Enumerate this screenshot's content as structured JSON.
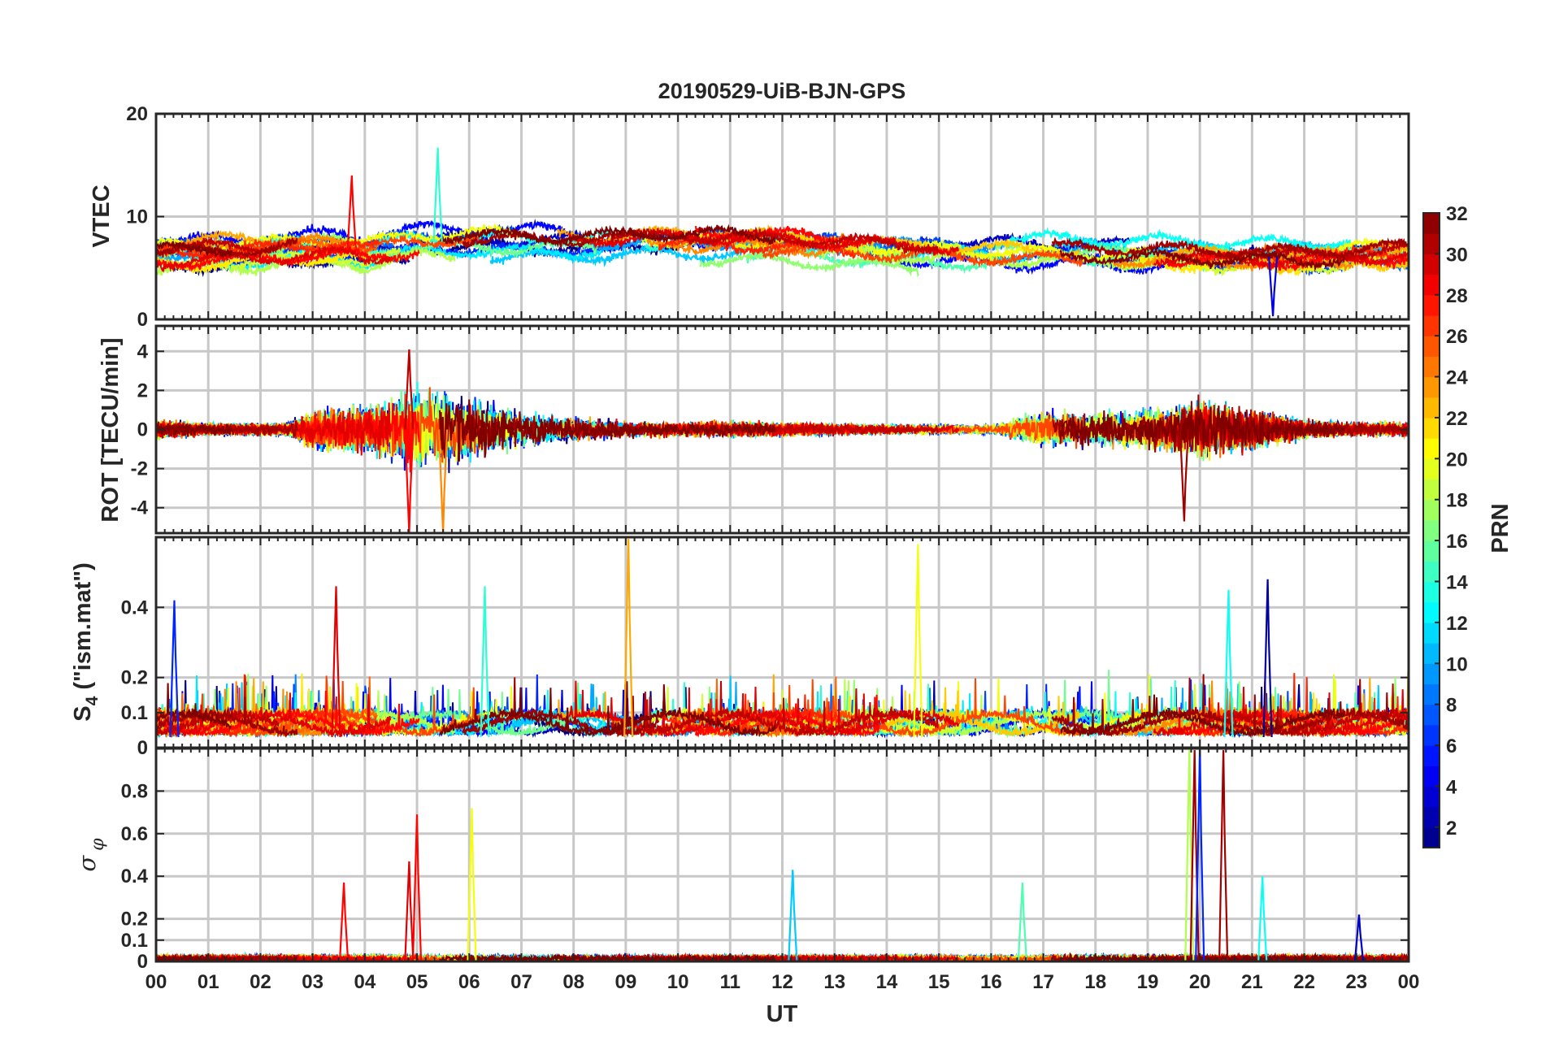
{
  "chart_data": {
    "type": "line",
    "title": "20190529-UiB-BJN-GPS",
    "xlabel": "UT",
    "x_tick_labels": [
      "00",
      "01",
      "02",
      "03",
      "04",
      "05",
      "06",
      "07",
      "08",
      "09",
      "10",
      "11",
      "12",
      "13",
      "14",
      "15",
      "16",
      "17",
      "18",
      "19",
      "20",
      "21",
      "22",
      "23",
      "00"
    ],
    "x_range_hours": [
      0,
      24
    ],
    "grid": true,
    "colorbar": {
      "label": "PRN",
      "range": [
        1,
        32
      ],
      "colormap": "jet",
      "tick_labels": [
        "2",
        "4",
        "6",
        "8",
        "10",
        "12",
        "14",
        "16",
        "18",
        "20",
        "22",
        "24",
        "26",
        "28",
        "30",
        "32"
      ]
    },
    "panels": [
      {
        "ylabel": "VTEC",
        "ylim": [
          0,
          20
        ],
        "y_tick_labels": [
          "0",
          "10",
          "20"
        ],
        "y_tick_values": [
          0,
          10,
          20
        ],
        "profile": {
          "hours": [
            0,
            2,
            3,
            3.7,
            4,
            5,
            6,
            7,
            9,
            10,
            12,
            14,
            16,
            18,
            19,
            20,
            21,
            22,
            23,
            24
          ],
          "base": [
            6.3,
            6.6,
            7.0,
            7.0,
            6.5,
            7.5,
            7.6,
            7.4,
            7.6,
            7.8,
            7.5,
            7.0,
            6.6,
            6.4,
            6.3,
            6.2,
            6.1,
            6.0,
            6.3,
            6.5
          ]
        },
        "peak_values": [
          {
            "hour": 3.75,
            "value": 14.0,
            "prn": 28
          },
          {
            "hour": 5.4,
            "value": 16.7,
            "prn": 14
          },
          {
            "hour": 21.4,
            "value": 0.3,
            "prn": 4
          }
        ]
      },
      {
        "ylabel": "ROT [TECU/min]",
        "ylim": [
          -5.3,
          5.3
        ],
        "y_tick_labels": [
          "-4",
          "-2",
          "0",
          "2",
          "4"
        ],
        "y_tick_values": [
          -4,
          -2,
          0,
          2,
          4
        ],
        "activity": {
          "hours": [
            0,
            1,
            2.5,
            3,
            4,
            5,
            6,
            7,
            9,
            10,
            11,
            12,
            14,
            16,
            17,
            18,
            19,
            20,
            21,
            22,
            23,
            24
          ],
          "amplitude": [
            0.8,
            0.5,
            0.5,
            1.6,
            1.9,
            3.2,
            2.6,
            1.4,
            0.7,
            0.6,
            0.7,
            0.6,
            0.4,
            0.4,
            1.5,
            1.3,
            1.6,
            2.2,
            1.7,
            0.8,
            0.6,
            0.6
          ]
        },
        "peak_values": [
          {
            "hour": 4.85,
            "value": 4.1,
            "prn": 30
          },
          {
            "hour": 4.85,
            "value": -5.3,
            "prn": 28
          },
          {
            "hour": 5.5,
            "value": -5.3,
            "prn": 24
          },
          {
            "hour": 19.7,
            "value": -4.7,
            "prn": 31
          }
        ]
      },
      {
        "ylabel": "S₄ (\"ism.mat\")",
        "ylabel_main": "S",
        "ylabel_sub": "4",
        "ylabel_rest": " (\"ism.mat\")",
        "ylim": [
          0,
          0.6
        ],
        "y_tick_labels": [
          "0",
          "0.1",
          "0.2",
          "0.4"
        ],
        "y_tick_values": [
          0,
          0.1,
          0.2,
          0.4
        ],
        "baseline_range": [
          0.03,
          0.12
        ],
        "peak_values": [
          {
            "hour": 9.05,
            "value": 0.6,
            "prn": 23
          },
          {
            "hour": 14.6,
            "value": 0.58,
            "prn": 20
          },
          {
            "hour": 3.45,
            "value": 0.46,
            "prn": 29
          },
          {
            "hour": 6.3,
            "value": 0.46,
            "prn": 14
          },
          {
            "hour": 21.3,
            "value": 0.48,
            "prn": 2
          },
          {
            "hour": 20.55,
            "value": 0.45,
            "prn": 13
          },
          {
            "hour": 0.35,
            "value": 0.42,
            "prn": 6
          }
        ]
      },
      {
        "ylabel": "σφ",
        "ylabel_sigma": "σ",
        "ylabel_phi": "φ",
        "ylim": [
          0,
          1.0
        ],
        "y_tick_labels": [
          "0",
          "0.1",
          "0.2",
          "0.4",
          "0.6",
          "0.8"
        ],
        "y_tick_values": [
          0,
          0.1,
          0.2,
          0.4,
          0.6,
          0.8
        ],
        "baseline_range": [
          0.005,
          0.04
        ],
        "peak_values": [
          {
            "hour": 5.0,
            "value": 0.69,
            "prn": 28
          },
          {
            "hour": 6.05,
            "value": 0.72,
            "prn": 20
          },
          {
            "hour": 4.85,
            "value": 0.47,
            "prn": 29
          },
          {
            "hour": 3.6,
            "value": 0.37,
            "prn": 28
          },
          {
            "hour": 12.2,
            "value": 0.43,
            "prn": 11
          },
          {
            "hour": 19.8,
            "value": 1.0,
            "prn": 18
          },
          {
            "hour": 19.9,
            "value": 1.0,
            "prn": 31
          },
          {
            "hour": 20.0,
            "value": 1.0,
            "prn": 6
          },
          {
            "hour": 20.45,
            "value": 1.0,
            "prn": 31
          },
          {
            "hour": 21.2,
            "value": 0.4,
            "prn": 13
          },
          {
            "hour": 16.6,
            "value": 0.37,
            "prn": 15
          },
          {
            "hour": 23.05,
            "value": 0.22,
            "prn": 3
          }
        ]
      }
    ]
  }
}
